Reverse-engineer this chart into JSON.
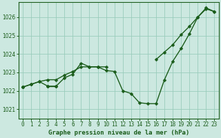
{
  "title": "Graphe pression niveau de la mer (hPa)",
  "background_color": "#cce8e0",
  "grid_color": "#99ccbb",
  "line_color": "#1a5c1a",
  "xlim": [
    -0.5,
    23.5
  ],
  "ylim": [
    1020.5,
    1026.8
  ],
  "xticks": [
    0,
    1,
    2,
    3,
    4,
    5,
    6,
    7,
    8,
    9,
    10,
    11,
    12,
    13,
    14,
    15,
    16,
    17,
    18,
    19,
    20,
    21,
    22,
    23
  ],
  "yticks": [
    1021,
    1022,
    1023,
    1024,
    1025,
    1026
  ],
  "series1": [
    1022.2,
    1022.35,
    1022.5,
    1022.25,
    1022.25,
    1022.7,
    1022.9,
    1023.5,
    1023.3,
    1023.3,
    1023.1,
    1023.05,
    1022.0,
    1021.85,
    1021.35,
    1021.3,
    1021.3,
    1022.6,
    1023.6,
    1024.3,
    1025.1,
    1026.0,
    1026.45,
    1026.3
  ],
  "series2": [
    1022.2,
    1022.35,
    1022.5,
    1022.6,
    1022.6,
    1022.85,
    1023.05,
    1023.3,
    1023.3,
    1023.3,
    1023.3,
    null,
    null,
    null,
    null,
    null,
    null,
    null,
    null,
    null,
    null,
    null,
    null,
    null
  ],
  "series3": [
    1022.2,
    null,
    null,
    1022.25,
    1022.25,
    null,
    null,
    null,
    null,
    null,
    null,
    null,
    null,
    null,
    null,
    null,
    1023.7,
    1024.1,
    1024.5,
    1025.05,
    1025.5,
    1026.0,
    1026.5,
    1026.3
  ],
  "marker": "D",
  "markersize": 2.5,
  "linewidth": 1.0,
  "title_fontsize": 6.5,
  "tick_fontsize": 5.5
}
